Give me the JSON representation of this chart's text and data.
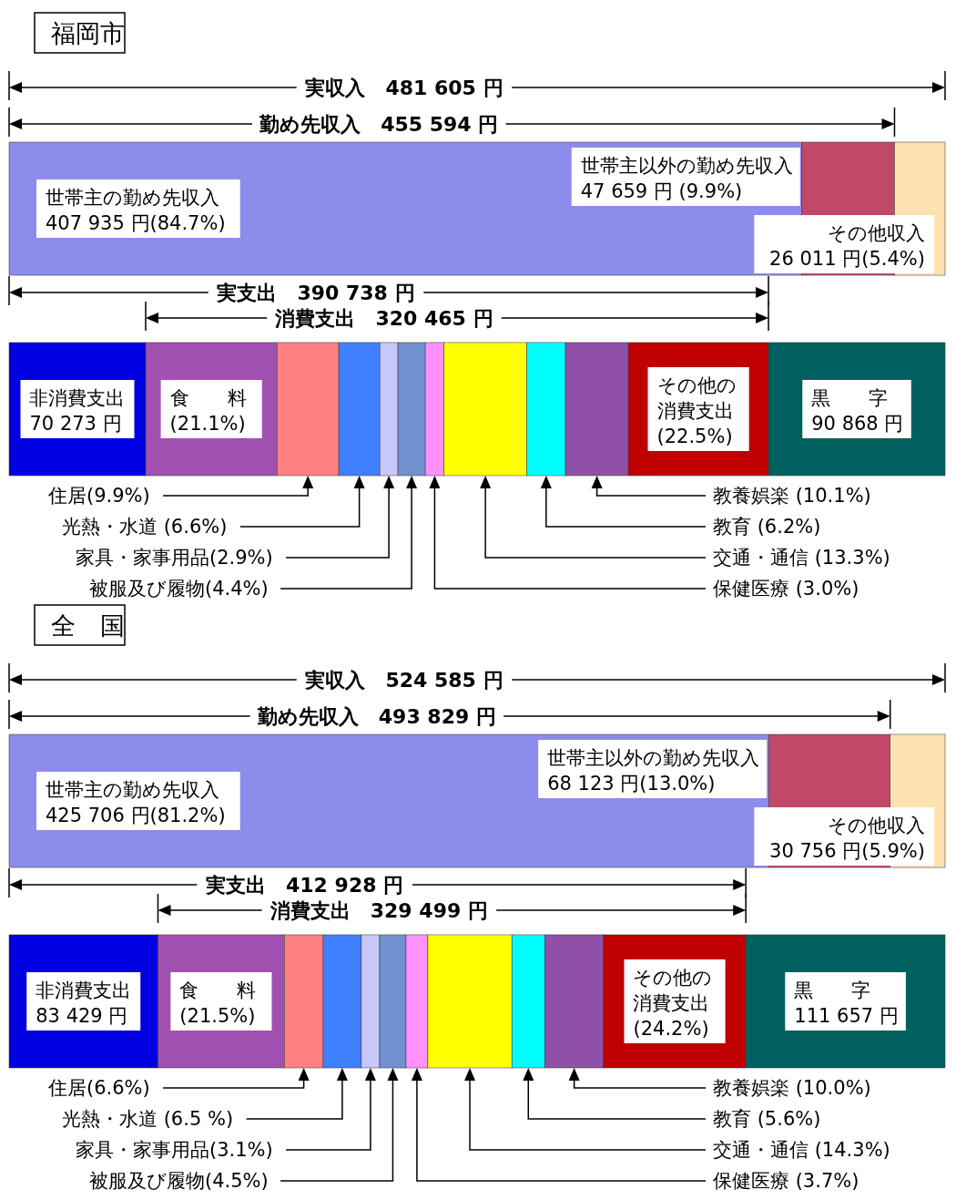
{
  "chart_data": [
    {
      "type": "bar",
      "orientation": "horizontal",
      "stacked": true,
      "title": "福岡市",
      "categories": [
        null,
        null
      ],
      "annotations": [
        "実収入　481 605 円",
        "勤め先収入　455 594 円",
        "実支出　390 738 円",
        "消費支出　320 465 円"
      ],
      "series": [
        {
          "name": "世帯主の勤め先収入",
          "color": "#8c8cec",
          "values": [
            407935,
            null
          ],
          "value_labels": [
            "407 935 円(84.7%)",
            null
          ]
        },
        {
          "name": "世帯主以外の勤め先収入",
          "color": "#c04868",
          "values": [
            47659,
            null
          ],
          "value_labels": [
            "47 659 円 (9.9%)",
            null
          ]
        },
        {
          "name": "その他収入",
          "color": "#ffe0b0",
          "values": [
            26011,
            null
          ],
          "value_labels": [
            "26 011 円(5.4%)",
            null
          ]
        },
        {
          "name": "非消費支出",
          "color": "#0000e0",
          "values": [
            null,
            70273
          ],
          "value_labels": [
            null,
            "70 273 円"
          ]
        },
        {
          "name": "食　　料(21.1%)",
          "color": "#a050b0",
          "values": [
            null,
            67618
          ]
        },
        {
          "name": "住居(9.9%)",
          "color": "#ff8080",
          "values": [
            null,
            31726
          ]
        },
        {
          "name": "光熱・水道 (6.6%)",
          "color": "#4080ff",
          "values": [
            null,
            21151
          ]
        },
        {
          "name": "家具・家事用品(2.9%)",
          "color": "#c8c8f8",
          "values": [
            null,
            9293
          ]
        },
        {
          "name": "被服及び履物(4.4%)",
          "color": "#7090d0",
          "values": [
            null,
            14100
          ]
        },
        {
          "name": "保健医療 (3.0%)",
          "color": "#ff90ff",
          "values": [
            null,
            9614
          ]
        },
        {
          "name": "交通・通信 (13.3%)",
          "color": "#ffff00",
          "values": [
            null,
            42622
          ]
        },
        {
          "name": "教育 (6.2%)",
          "color": "#00ffff",
          "values": [
            null,
            19869
          ]
        },
        {
          "name": "教養娯楽 (10.1%)",
          "color": "#9050a8",
          "values": [
            null,
            32367
          ]
        },
        {
          "name": "その他の消費支出(22.5%)",
          "color": "#c00000",
          "values": [
            null,
            72105
          ]
        },
        {
          "name": "黒　　字",
          "color": "#006060",
          "values": [
            null,
            90868
          ],
          "value_labels": [
            null,
            "90 868 円"
          ]
        }
      ]
    },
    {
      "type": "bar",
      "orientation": "horizontal",
      "stacked": true,
      "title": "全　国",
      "categories": [
        null,
        null
      ],
      "annotations": [
        "実収入　524 585 円",
        "勤め先収入　493 829 円",
        "実支出　412 928 円",
        "消費支出　329 499 円"
      ],
      "series": [
        {
          "name": "世帯主の勤め先収入",
          "color": "#8c8cec",
          "values": [
            425706,
            null
          ],
          "value_labels": [
            "425 706 円(81.2%)",
            null
          ]
        },
        {
          "name": "世帯主以外の勤め先収入",
          "color": "#c04868",
          "values": [
            68123,
            null
          ],
          "value_labels": [
            "68 123 円(13.0%)",
            null
          ]
        },
        {
          "name": "その他収入",
          "color": "#ffe0b0",
          "values": [
            30756,
            null
          ],
          "value_labels": [
            "30 756 円(5.9%)",
            null
          ]
        },
        {
          "name": "非消費支出",
          "color": "#0000e0",
          "values": [
            null,
            83429
          ],
          "value_labels": [
            null,
            "83 429 円"
          ]
        },
        {
          "name": "食　　料(21.5%)",
          "color": "#a050b0",
          "values": [
            null,
            70842
          ]
        },
        {
          "name": "住居(6.6%)",
          "color": "#ff8080",
          "values": [
            null,
            21747
          ]
        },
        {
          "name": "光熱・水道 (6.5 %)",
          "color": "#4080ff",
          "values": [
            null,
            21417
          ]
        },
        {
          "name": "家具・家事用品(3.1%)",
          "color": "#c8c8f8",
          "values": [
            null,
            10214
          ]
        },
        {
          "name": "被服及び履物(4.5%)",
          "color": "#7090d0",
          "values": [
            null,
            14827
          ]
        },
        {
          "name": "保健医療 (3.7%)",
          "color": "#ff90ff",
          "values": [
            null,
            12191
          ]
        },
        {
          "name": "交通・通信 (14.3%)",
          "color": "#ffff00",
          "values": [
            null,
            47118
          ]
        },
        {
          "name": "教育 (5.6%)",
          "color": "#00ffff",
          "values": [
            null,
            18452
          ]
        },
        {
          "name": "教養娯楽 (10.0%)",
          "color": "#9050a8",
          "values": [
            null,
            32950
          ]
        },
        {
          "name": "その他の消費支出(24.2%)",
          "color": "#c00000",
          "values": [
            null,
            79739
          ]
        },
        {
          "name": "黒　　字",
          "color": "#006060",
          "values": [
            null,
            111657
          ],
          "value_labels": [
            null,
            "111 657 円"
          ]
        }
      ]
    }
  ]
}
